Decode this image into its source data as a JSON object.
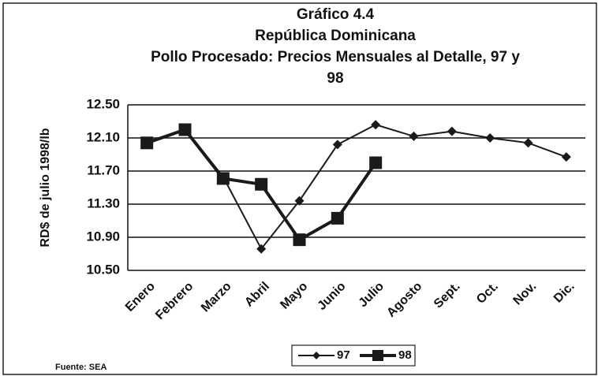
{
  "chart_data": {
    "type": "line",
    "title": [
      "Gráfico 4.4",
      "República Dominicana",
      "Pollo Procesado: Precios Mensuales al Detalle, 97 y",
      "98"
    ],
    "ylabel": "RD$ de julio 1998/lb",
    "source": "Fuente: SEA",
    "categories": [
      "Enero",
      "Febrero",
      "Marzo",
      "Abril",
      "Mayo",
      "Junio",
      "Julio",
      "Agosto",
      "Sept.",
      "Oct.",
      "Nov.",
      "Dic."
    ],
    "series": [
      {
        "name": "97",
        "color": "#1a1a1a",
        "marker": "diamond",
        "values": [
          12.04,
          12.21,
          11.63,
          10.76,
          11.34,
          12.02,
          12.26,
          12.12,
          12.18,
          12.1,
          12.04,
          11.87
        ]
      },
      {
        "name": "98",
        "color": "#1a1a1a",
        "marker": "square",
        "values": [
          12.04,
          12.2,
          11.61,
          11.54,
          10.87,
          11.13,
          11.8,
          null,
          null,
          null,
          null,
          null
        ]
      }
    ],
    "ylim": [
      10.5,
      12.5
    ],
    "yticks": [
      {
        "value": 10.5,
        "label": "10.50"
      },
      {
        "value": 10.9,
        "label": "10.90"
      },
      {
        "value": 11.3,
        "label": "11.30"
      },
      {
        "value": 11.7,
        "label": "11.70"
      },
      {
        "value": 12.1,
        "label": "12.10"
      },
      {
        "value": 12.5,
        "label": "12.50"
      }
    ],
    "grid": true,
    "legend": "bottom"
  }
}
